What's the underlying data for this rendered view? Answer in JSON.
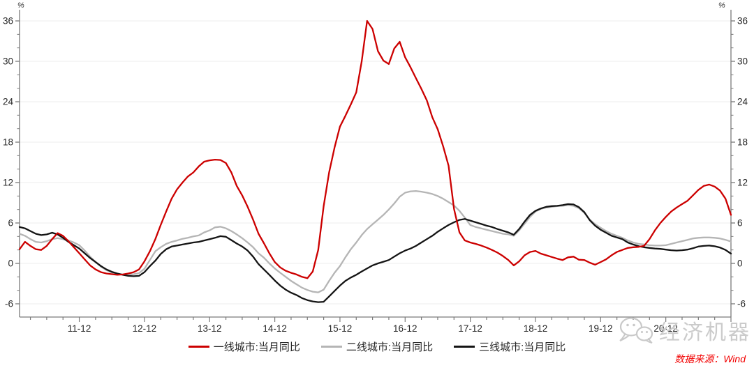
{
  "figure": {
    "unit_left": "%",
    "unit_right": "%",
    "watermark": "经济机器",
    "source_note": "数据来源：Wind"
  },
  "legend": [
    {
      "label": "一线城市:当月同比",
      "color": "#cc0000"
    },
    {
      "label": "二线城市:当月同比",
      "color": "#b5b5b5"
    },
    {
      "label": "三线城市:当月同比",
      "color": "#141414"
    }
  ],
  "chart_data": {
    "type": "line",
    "title": "",
    "xlabel": "",
    "ylabel": "%",
    "ylim": [
      -8,
      37.6
    ],
    "yticks": [
      -6,
      0,
      6,
      12,
      18,
      24,
      30,
      36
    ],
    "y_minor_step": 2,
    "grid": "horizontal-major",
    "legend_position": "bottom-center",
    "axis_color": "#7a7a7a",
    "grid_color": "#ededed",
    "tick_label_color": "#262626",
    "x_tick_labels": [
      "11-12",
      "12-12",
      "13-12",
      "14-12",
      "15-12",
      "16-12",
      "17-12",
      "18-12",
      "19-12",
      "20-12"
    ],
    "x_monthly_range": "2011-01 to 2021-12",
    "draw_order": [
      1,
      2,
      0
    ],
    "series": [
      {
        "name": "一线城市:当月同比",
        "id": "tier1",
        "color": "#cc0000",
        "values": [
          2.1,
          3.2,
          2.6,
          2.1,
          2.0,
          2.6,
          3.6,
          4.5,
          4.1,
          3.3,
          2.4,
          1.5,
          0.6,
          -0.3,
          -0.9,
          -1.3,
          -1.5,
          -1.6,
          -1.7,
          -1.65,
          -1.5,
          -1.3,
          -0.9,
          0.3,
          1.8,
          3.6,
          5.7,
          7.7,
          9.6,
          11.0,
          12.0,
          12.9,
          13.5,
          14.4,
          15.1,
          15.3,
          15.4,
          15.35,
          14.9,
          13.5,
          11.5,
          10.1,
          8.4,
          6.5,
          4.4,
          3.0,
          1.5,
          0.2,
          -0.6,
          -1.1,
          -1.4,
          -1.65,
          -2.0,
          -2.2,
          -1.2,
          2.0,
          8.5,
          13.5,
          17.2,
          20.3,
          21.9,
          23.6,
          25.4,
          30.0,
          36.0,
          34.8,
          31.5,
          30.1,
          29.6,
          31.9,
          32.9,
          30.6,
          29.1,
          27.5,
          25.9,
          24.2,
          21.7,
          19.9,
          17.4,
          14.5,
          8.1,
          4.6,
          3.4,
          3.1,
          2.9,
          2.65,
          2.35,
          2.0,
          1.6,
          1.1,
          0.5,
          -0.3,
          0.3,
          1.2,
          1.7,
          1.85,
          1.45,
          1.2,
          0.95,
          0.7,
          0.5,
          0.9,
          1.0,
          0.55,
          0.5,
          0.1,
          -0.2,
          0.2,
          0.6,
          1.2,
          1.7,
          2.0,
          2.3,
          2.4,
          2.45,
          2.6,
          3.6,
          4.9,
          6.0,
          6.9,
          7.7,
          8.3,
          8.8,
          9.3,
          10.1,
          10.9,
          11.5,
          11.7,
          11.4,
          10.8,
          9.6,
          7.2
        ]
      },
      {
        "name": "二线城市:当月同比",
        "id": "tier2",
        "color": "#b5b5b5",
        "values": [
          4.4,
          4.1,
          3.6,
          3.2,
          3.1,
          3.3,
          3.6,
          3.75,
          3.6,
          3.4,
          3.1,
          2.7,
          1.9,
          1.0,
          0.2,
          -0.5,
          -1.0,
          -1.35,
          -1.55,
          -1.65,
          -1.65,
          -1.6,
          -1.45,
          -0.8,
          0.5,
          1.8,
          2.4,
          2.9,
          3.2,
          3.4,
          3.65,
          3.8,
          4.0,
          4.15,
          4.6,
          4.9,
          5.35,
          5.45,
          5.2,
          4.8,
          4.3,
          3.75,
          3.1,
          2.4,
          1.5,
          0.85,
          0.0,
          -0.75,
          -1.4,
          -2.0,
          -2.6,
          -3.1,
          -3.6,
          -3.95,
          -4.2,
          -4.3,
          -3.9,
          -2.6,
          -1.4,
          -0.4,
          0.9,
          2.1,
          3.1,
          4.2,
          5.1,
          5.8,
          6.5,
          7.2,
          8.0,
          8.9,
          9.9,
          10.5,
          10.7,
          10.75,
          10.65,
          10.5,
          10.3,
          10.0,
          9.6,
          9.1,
          8.6,
          7.8,
          6.8,
          5.7,
          5.4,
          5.2,
          5.0,
          4.8,
          4.6,
          4.4,
          4.3,
          4.1,
          4.9,
          5.9,
          6.9,
          7.7,
          8.1,
          8.3,
          8.4,
          8.5,
          8.55,
          8.65,
          8.55,
          8.2,
          7.5,
          6.5,
          5.8,
          5.3,
          4.8,
          4.4,
          4.1,
          3.8,
          3.4,
          3.1,
          2.9,
          2.8,
          2.7,
          2.65,
          2.65,
          2.7,
          2.9,
          3.1,
          3.3,
          3.5,
          3.7,
          3.8,
          3.85,
          3.85,
          3.8,
          3.7,
          3.5,
          3.25
        ]
      },
      {
        "name": "三线城市:当月同比",
        "id": "tier3",
        "color": "#141414",
        "values": [
          5.4,
          5.2,
          4.8,
          4.4,
          4.2,
          4.3,
          4.55,
          4.3,
          3.8,
          3.2,
          2.7,
          2.2,
          1.5,
          0.8,
          0.2,
          -0.4,
          -0.9,
          -1.25,
          -1.5,
          -1.7,
          -1.85,
          -1.9,
          -1.85,
          -1.3,
          -0.4,
          0.4,
          1.4,
          2.1,
          2.5,
          2.65,
          2.8,
          2.95,
          3.1,
          3.2,
          3.4,
          3.6,
          3.8,
          4.05,
          3.95,
          3.45,
          2.95,
          2.5,
          1.9,
          1.0,
          -0.1,
          -0.9,
          -1.7,
          -2.55,
          -3.3,
          -3.9,
          -4.35,
          -4.7,
          -5.15,
          -5.45,
          -5.65,
          -5.75,
          -5.7,
          -4.9,
          -4.1,
          -3.3,
          -2.6,
          -2.1,
          -1.7,
          -1.2,
          -0.75,
          -0.3,
          0.0,
          0.25,
          0.5,
          1.0,
          1.5,
          1.9,
          2.2,
          2.6,
          3.1,
          3.6,
          4.1,
          4.7,
          5.2,
          5.7,
          6.1,
          6.45,
          6.6,
          6.35,
          6.1,
          5.85,
          5.6,
          5.4,
          5.1,
          4.85,
          4.6,
          4.25,
          5.1,
          6.2,
          7.2,
          7.8,
          8.15,
          8.4,
          8.5,
          8.55,
          8.65,
          8.8,
          8.75,
          8.35,
          7.6,
          6.4,
          5.6,
          5.0,
          4.55,
          4.1,
          3.85,
          3.6,
          3.1,
          2.8,
          2.55,
          2.4,
          2.3,
          2.2,
          2.15,
          2.05,
          1.95,
          1.9,
          1.95,
          2.05,
          2.25,
          2.5,
          2.6,
          2.65,
          2.55,
          2.35,
          2.0,
          1.45
        ]
      }
    ]
  }
}
